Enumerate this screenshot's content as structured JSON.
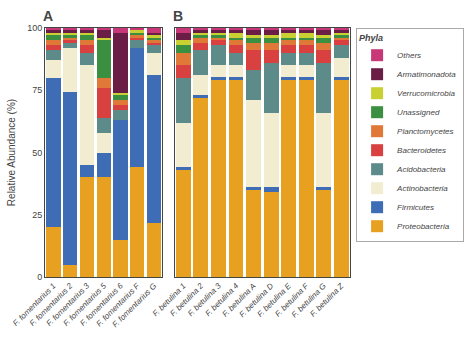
{
  "chart_data": [
    {
      "type": "bar",
      "title": "A",
      "stacked": true,
      "grid": false,
      "ylabel": "Relative Abundance (%)",
      "categories": [
        "F. fomentarius 1",
        "F. fomentarius 2",
        "F. fomentarius 3",
        "F. fomentarius 5",
        "F. fomentarius 6",
        "F. fomentarius F",
        "F. fomentarius G"
      ],
      "ylim": [
        0,
        100
      ],
      "yticks": [
        0,
        25,
        50,
        75,
        100
      ],
      "series": [
        {
          "name": "Proteobacteria",
          "color": "#E8A020",
          "values": [
            20,
            4.9505,
            40,
            40,
            15,
            44,
            21.7822
          ]
        },
        {
          "name": "Firmicutes",
          "color": "#3F6DB5",
          "values": [
            60,
            69.3069,
            5,
            10,
            48,
            48,
            59.4059
          ]
        },
        {
          "name": "Actinobacteria",
          "color": "#F2EDD0",
          "values": [
            7,
            17.8218,
            40,
            8,
            0,
            0,
            8.9109
          ]
        },
        {
          "name": "Acidobacteria",
          "color": "#5D8B8A",
          "values": [
            4,
            1.9802,
            5,
            6,
            4,
            3,
            2.9703
          ]
        },
        {
          "name": "Bacteroidetes",
          "color": "#D94040",
          "values": [
            2,
            0.9901,
            3,
            12,
            2,
            1,
            0.9901
          ]
        },
        {
          "name": "Planctomycetes",
          "color": "#E07838",
          "values": [
            2,
            0.9901,
            2,
            4,
            2,
            1,
            0.9901
          ]
        },
        {
          "name": "Unassigned",
          "color": "#3A9040",
          "values": [
            2,
            0.9901,
            2,
            15,
            2,
            1,
            0.9901
          ]
        },
        {
          "name": "Verrucomicrobia",
          "color": "#C8D032",
          "values": [
            1,
            0.9901,
            1,
            1,
            1,
            1,
            0.9901
          ]
        },
        {
          "name": "Armatimonadota",
          "color": "#6B1E45",
          "values": [
            1,
            0.9901,
            1,
            3,
            24,
            0,
            0.9901
          ]
        },
        {
          "name": "Others",
          "color": "#C83878",
          "values": [
            1,
            0.9901,
            1,
            1,
            2,
            1,
            1.9802
          ]
        }
      ]
    },
    {
      "type": "bar",
      "title": "B",
      "stacked": true,
      "grid": false,
      "tick_labels": "x",
      "legend": "right",
      "legend_title": "Phyla",
      "categories": [
        "F. betulina 1",
        "F. betulina 2",
        "F. betulina 3",
        "F. betulina 4",
        "F. betulina A",
        "F. betulina D",
        "F. betulina E",
        "F. betulina F",
        "F. betulina G",
        "F. betulina Z"
      ],
      "ylim": [
        0,
        100
      ],
      "yticks": [
        0,
        25,
        50,
        75,
        100
      ],
      "series": [
        {
          "name": "Proteobacteria",
          "color": "#E8A020",
          "values": [
            43,
            72,
            79.2079,
            79.2079,
            35,
            34,
            79.2079,
            79.2079,
            35,
            79.2079
          ]
        },
        {
          "name": "Firmicutes",
          "color": "#3F6DB5",
          "values": [
            1,
            1,
            0.9901,
            0.9901,
            1,
            2,
            0.9901,
            0.9901,
            1,
            0.9901
          ]
        },
        {
          "name": "Actinobacteria",
          "color": "#F2EDD0",
          "values": [
            18,
            8,
            4.9505,
            4.9505,
            35,
            30,
            4.9505,
            4.9505,
            30,
            7.9208
          ]
        },
        {
          "name": "Acidobacteria",
          "color": "#5D8B8A",
          "values": [
            18,
            10,
            7.9208,
            4.9505,
            12,
            20,
            4.9505,
            4.9505,
            20,
            4.9505
          ]
        },
        {
          "name": "Bacteroidetes",
          "color": "#D94040",
          "values": [
            5,
            3,
            1.9802,
            2.9703,
            8,
            5,
            2.9703,
            2.9703,
            5,
            1.9802
          ]
        },
        {
          "name": "Planctomycetes",
          "color": "#E07838",
          "values": [
            5,
            2,
            0.9901,
            1.9802,
            3,
            3,
            1.9802,
            1.9802,
            3,
            0.9901
          ]
        },
        {
          "name": "Unassigned",
          "color": "#3A9040",
          "values": [
            3,
            1,
            0.9901,
            0.9901,
            2,
            2,
            0.9901,
            0.9901,
            2,
            0.9901
          ]
        },
        {
          "name": "Verrucomicrobia",
          "color": "#C8D032",
          "values": [
            2,
            1,
            0.9901,
            1.9802,
            1,
            1,
            1.9802,
            1.9802,
            1,
            0.9901
          ]
        },
        {
          "name": "Armatimonadota",
          "color": "#6B1E45",
          "values": [
            3,
            1,
            0.9901,
            0.9901,
            2,
            2,
            0.9901,
            0.9901,
            2,
            0.9901
          ]
        },
        {
          "name": "Others",
          "color": "#C83878",
          "values": [
            2,
            1,
            0.9901,
            0.9901,
            1,
            1,
            0.9901,
            0.9901,
            1,
            0.9901
          ]
        }
      ]
    }
  ]
}
